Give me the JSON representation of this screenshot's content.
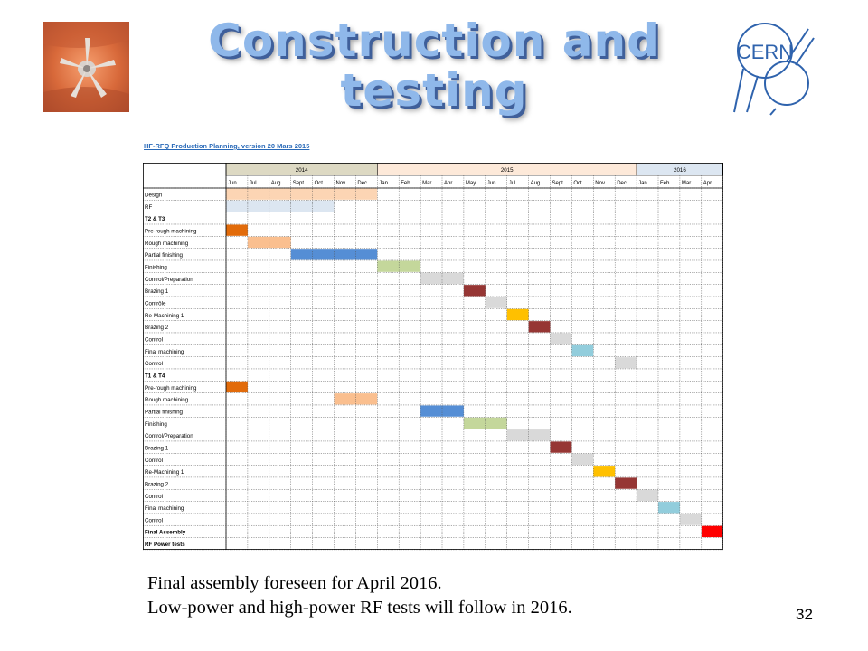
{
  "slide": {
    "title_line1": "Construction and",
    "title_line2": "testing",
    "logo_text": "CERN",
    "page_number": "32",
    "caption_line1": "Final assembly foreseen for April 2016.",
    "caption_line2": "Low-power and high-power RF tests will follow in 2016."
  },
  "gantt": {
    "title": "HF-RFQ Production Planning, version 20 Mars 2015",
    "years": [
      {
        "label": "2014",
        "span": 7,
        "color": "#ddd9c3"
      },
      {
        "label": "2015",
        "span": 12,
        "color": "#fde9d9"
      },
      {
        "label": "2016",
        "span": 4,
        "color": "#dce6f1"
      }
    ],
    "months": [
      "Jun.",
      "Jul.",
      "Aug.",
      "Sept.",
      "Oct.",
      "Nov.",
      "Dec.",
      "Jan.",
      "Feb.",
      "Mar.",
      "Apr.",
      "May",
      "Jun.",
      "Jul.",
      "Aug.",
      "Sept.",
      "Oct.",
      "Nov.",
      "Dec.",
      "Jan.",
      "Feb.",
      "Mar.",
      "Apr"
    ],
    "tasks": [
      {
        "label": "Design",
        "bold": false,
        "start": 0,
        "span": 7,
        "color": "#fcd5b4"
      },
      {
        "label": "RF",
        "bold": false,
        "start": 0,
        "span": 5,
        "color": "#dce6f1"
      },
      {
        "label": "T2 & T3",
        "bold": true
      },
      {
        "label": "Pre-rough machining",
        "bold": false,
        "start": 0,
        "span": 1,
        "color": "#e26b0a"
      },
      {
        "label": "Rough machining",
        "bold": false,
        "start": 1,
        "span": 2,
        "color": "#fabf8f"
      },
      {
        "label": "Partial finishing",
        "bold": false,
        "start": 3,
        "span": 4,
        "color": "#558ed5"
      },
      {
        "label": "Finishing",
        "bold": false,
        "start": 7,
        "span": 2,
        "color": "#c4d79b"
      },
      {
        "label": "Control/Preparation",
        "bold": false,
        "start": 9,
        "span": 2,
        "color": "#d9d9d9"
      },
      {
        "label": "Brazing 1",
        "bold": false,
        "start": 11,
        "span": 1,
        "color": "#963634"
      },
      {
        "label": "Contrôle",
        "bold": false,
        "start": 12,
        "span": 1,
        "color": "#d9d9d9"
      },
      {
        "label": "Re-Machining 1",
        "bold": false,
        "start": 13,
        "span": 1,
        "color": "#ffc000"
      },
      {
        "label": "Brazing 2",
        "bold": false,
        "start": 14,
        "span": 1,
        "color": "#963634"
      },
      {
        "label": "Control",
        "bold": false,
        "start": 15,
        "span": 1,
        "color": "#d9d9d9"
      },
      {
        "label": "Final machining",
        "bold": false,
        "start": 16,
        "span": 1,
        "color": "#92cddc"
      },
      {
        "label": "Control",
        "bold": false,
        "start": 18,
        "span": 1,
        "color": "#d9d9d9"
      },
      {
        "label": "T1 & T4",
        "bold": true
      },
      {
        "label": "Pre-rough machining",
        "bold": false,
        "start": 0,
        "span": 1,
        "color": "#e26b0a"
      },
      {
        "label": "Rough machining",
        "bold": false,
        "start": 5,
        "span": 2,
        "color": "#fabf8f"
      },
      {
        "label": "Partial finishing",
        "bold": false,
        "start": 9,
        "span": 2,
        "color": "#558ed5"
      },
      {
        "label": "Finishing",
        "bold": false,
        "start": 11,
        "span": 2,
        "color": "#c4d79b"
      },
      {
        "label": "Control/Preparation",
        "bold": false,
        "start": 13,
        "span": 2,
        "color": "#d9d9d9"
      },
      {
        "label": "Brazing 1",
        "bold": false,
        "start": 15,
        "span": 1,
        "color": "#963634"
      },
      {
        "label": "Control",
        "bold": false,
        "start": 16,
        "span": 1,
        "color": "#d9d9d9"
      },
      {
        "label": "Re-Machining 1",
        "bold": false,
        "start": 17,
        "span": 1,
        "color": "#ffc000"
      },
      {
        "label": "Brazing 2",
        "bold": false,
        "start": 18,
        "span": 1,
        "color": "#963634"
      },
      {
        "label": "Control",
        "bold": false,
        "start": 19,
        "span": 1,
        "color": "#d9d9d9"
      },
      {
        "label": "Final machining",
        "bold": false,
        "start": 20,
        "span": 1,
        "color": "#92cddc"
      },
      {
        "label": "Control",
        "bold": false,
        "start": 21,
        "span": 1,
        "color": "#d9d9d9"
      },
      {
        "label": "Final Assembly",
        "bold": true,
        "start": 22,
        "span": 1,
        "color": "#ff0000"
      },
      {
        "label": "RF Power tests",
        "bold": true
      }
    ]
  }
}
